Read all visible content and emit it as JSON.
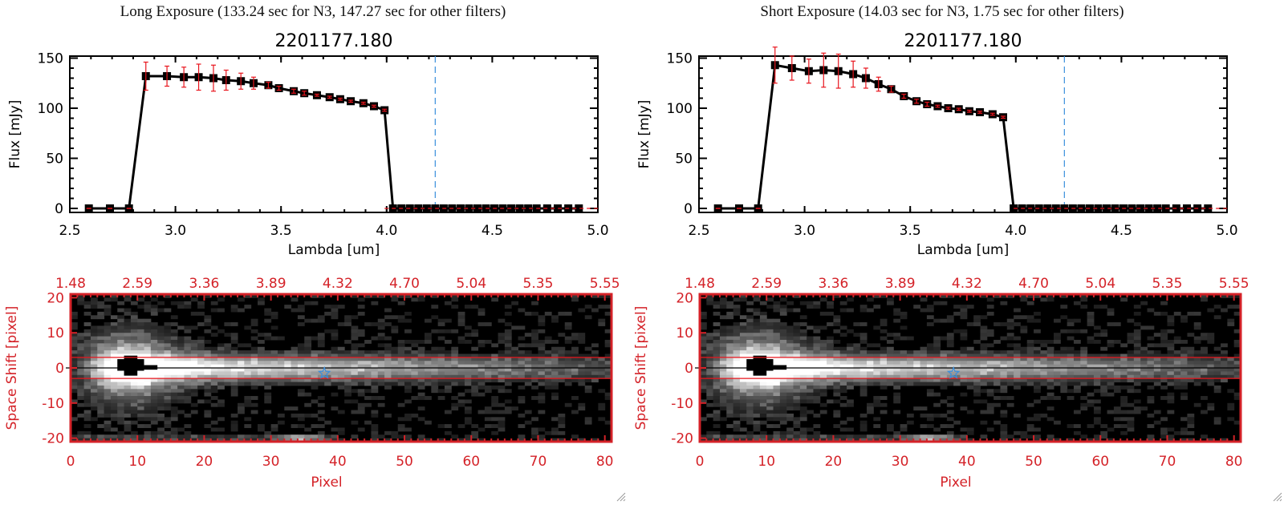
{
  "panels": [
    {
      "exposure_title": "Long Exposure (133.24 sec for N3, 147.27 sec for other filters)",
      "object_id": "2201177.180",
      "spectrum": {
        "type": "line",
        "title": "2201177.180",
        "xlabel": "Lambda [um]",
        "ylabel": "Flux [mJy]",
        "xlim": [
          2.5,
          5.0
        ],
        "ylim": [
          -4,
          152
        ],
        "xticks": [
          "2.5",
          "3.0",
          "3.5",
          "4.0",
          "4.5",
          "5.0"
        ],
        "xtick_values": [
          2.5,
          3.0,
          3.5,
          4.0,
          4.5,
          5.0
        ],
        "yticks": [
          "0",
          "50",
          "100",
          "150"
        ],
        "ytick_values": [
          0,
          50,
          100,
          150
        ],
        "marker_line_x": 4.23,
        "zero_line": 0,
        "x": [
          2.59,
          2.69,
          2.78,
          2.86,
          2.96,
          3.04,
          3.11,
          3.18,
          3.24,
          3.31,
          3.37,
          3.44,
          3.49,
          3.56,
          3.61,
          3.67,
          3.73,
          3.78,
          3.83,
          3.89,
          3.94,
          3.99,
          4.03,
          4.07,
          4.11,
          4.15,
          4.19,
          4.23,
          4.27,
          4.31,
          4.35,
          4.39,
          4.43,
          4.47,
          4.51,
          4.55,
          4.59,
          4.63,
          4.67,
          4.71,
          4.76,
          4.81,
          4.86,
          4.91
        ],
        "flux": [
          0,
          0,
          0,
          132,
          132,
          131,
          131,
          130,
          128,
          127,
          125,
          123,
          120,
          117,
          115,
          113,
          111,
          109,
          107,
          105,
          102,
          98,
          0,
          0,
          0,
          0,
          0,
          0,
          0,
          0,
          0,
          0,
          0,
          0,
          0,
          0,
          0,
          0,
          0,
          0,
          0,
          0,
          0,
          0
        ],
        "error": [
          0,
          0,
          0,
          14,
          10,
          10,
          13,
          13,
          10,
          8,
          6,
          3,
          2,
          2,
          2,
          1,
          1,
          1,
          1,
          1,
          1,
          1,
          0,
          0,
          0,
          0,
          0,
          0,
          0,
          0,
          0,
          0,
          0,
          0,
          0,
          0,
          0,
          0,
          0,
          0,
          0,
          0,
          0,
          0
        ]
      },
      "image": {
        "type": "heatmap",
        "xlabel": "Pixel",
        "ylabel": "Space Shift [pixel]",
        "xlim": [
          0,
          81
        ],
        "ylim": [
          -21,
          21
        ],
        "xticks": [
          "0",
          "10",
          "20",
          "30",
          "40",
          "50",
          "60",
          "70",
          "80"
        ],
        "xtick_values": [
          0,
          10,
          20,
          30,
          40,
          50,
          60,
          70,
          80
        ],
        "yticks": [
          "20",
          "10",
          "0",
          "-10",
          "-20"
        ],
        "ytick_values": [
          20,
          10,
          0,
          -10,
          -20
        ],
        "top_ticks": [
          "1.48",
          "2.59",
          "3.36",
          "3.89",
          "4.32",
          "4.70",
          "5.04",
          "5.35",
          "5.55"
        ],
        "aperture_lines": [
          3,
          -3
        ],
        "center_line": 0,
        "star_marker": [
          38,
          -1.5
        ],
        "saturated_center": [
          9,
          1
        ]
      }
    },
    {
      "exposure_title": "Short Exposure (14.03 sec for N3, 1.75 sec for other filters)",
      "object_id": "2201177.180",
      "spectrum": {
        "type": "line",
        "title": "2201177.180",
        "xlabel": "Lambda [um]",
        "ylabel": "Flux [mJy]",
        "xlim": [
          2.5,
          5.0
        ],
        "ylim": [
          -4,
          152
        ],
        "xticks": [
          "2.5",
          "3.0",
          "3.5",
          "4.0",
          "4.5",
          "5.0"
        ],
        "xtick_values": [
          2.5,
          3.0,
          3.5,
          4.0,
          4.5,
          5.0
        ],
        "yticks": [
          "0",
          "50",
          "100",
          "150"
        ],
        "ytick_values": [
          0,
          50,
          100,
          150
        ],
        "marker_line_x": 4.23,
        "zero_line": 0,
        "x": [
          2.59,
          2.69,
          2.78,
          2.86,
          2.94,
          3.02,
          3.09,
          3.16,
          3.23,
          3.29,
          3.35,
          3.41,
          3.47,
          3.53,
          3.58,
          3.63,
          3.68,
          3.73,
          3.78,
          3.83,
          3.89,
          3.94,
          3.99,
          4.03,
          4.07,
          4.11,
          4.15,
          4.19,
          4.23,
          4.27,
          4.31,
          4.35,
          4.39,
          4.43,
          4.47,
          4.51,
          4.55,
          4.59,
          4.63,
          4.67,
          4.71,
          4.76,
          4.81,
          4.86,
          4.91
        ],
        "flux": [
          0,
          0,
          0,
          143,
          140,
          137,
          138,
          137,
          134,
          130,
          124,
          119,
          112,
          107,
          104,
          102,
          100,
          99,
          97,
          96,
          94,
          91,
          0,
          0,
          0,
          0,
          0,
          0,
          0,
          0,
          0,
          0,
          0,
          0,
          0,
          0,
          0,
          0,
          0,
          0,
          0,
          0,
          0,
          0,
          0
        ],
        "error": [
          0,
          0,
          0,
          18,
          12,
          12,
          17,
          17,
          13,
          10,
          7,
          3,
          2,
          2,
          2,
          1,
          1,
          1,
          1,
          1,
          1,
          1,
          0,
          0,
          0,
          0,
          0,
          0,
          0,
          0,
          0,
          0,
          0,
          0,
          0,
          0,
          0,
          0,
          0,
          0,
          0,
          0,
          0,
          0,
          0
        ]
      },
      "image": {
        "type": "heatmap",
        "xlabel": "Pixel",
        "ylabel": "Space Shift [pixel]",
        "xlim": [
          0,
          81
        ],
        "ylim": [
          -21,
          21
        ],
        "xticks": [
          "0",
          "10",
          "20",
          "30",
          "40",
          "50",
          "60",
          "70",
          "80"
        ],
        "xtick_values": [
          0,
          10,
          20,
          30,
          40,
          50,
          60,
          70,
          80
        ],
        "yticks": [
          "20",
          "10",
          "0",
          "-10",
          "-20"
        ],
        "ytick_values": [
          20,
          10,
          0,
          -10,
          -20
        ],
        "top_ticks": [
          "1.48",
          "2.59",
          "3.36",
          "3.89",
          "4.32",
          "4.70",
          "5.04",
          "5.35",
          "5.55"
        ],
        "aperture_lines": [
          3,
          -3
        ],
        "center_line": 0,
        "star_marker": [
          38,
          -1.5
        ],
        "saturated_center": [
          9,
          1
        ]
      }
    }
  ],
  "chart_data": [
    {
      "type": "line",
      "title": "2201177.180",
      "subtitle": "Long Exposure (133.24 sec for N3, 147.27 sec for other filters)",
      "xlabel": "Lambda [um]",
      "ylabel": "Flux [mJy]",
      "xlim": [
        2.5,
        5.0
      ],
      "ylim": [
        0,
        150
      ],
      "series": [
        {
          "name": "flux",
          "x": [
            2.59,
            2.69,
            2.78,
            2.86,
            2.96,
            3.04,
            3.11,
            3.18,
            3.24,
            3.31,
            3.37,
            3.44,
            3.49,
            3.56,
            3.61,
            3.67,
            3.73,
            3.78,
            3.83,
            3.89,
            3.94,
            3.99
          ],
          "values": [
            0,
            0,
            0,
            132,
            132,
            131,
            131,
            130,
            128,
            127,
            125,
            123,
            120,
            117,
            115,
            113,
            111,
            109,
            107,
            105,
            102,
            98
          ]
        }
      ]
    },
    {
      "type": "heatmap",
      "xlabel": "Pixel",
      "ylabel": "Space Shift [pixel]",
      "xlim": [
        0,
        81
      ],
      "ylim": [
        -21,
        21
      ],
      "top_axis_ticks": [
        "1.48",
        "2.59",
        "3.36",
        "3.89",
        "4.32",
        "4.70",
        "5.04",
        "5.35",
        "5.55"
      ]
    },
    {
      "type": "line",
      "title": "2201177.180",
      "subtitle": "Short Exposure (14.03 sec for N3, 1.75 sec for other filters)",
      "xlabel": "Lambda [um]",
      "ylabel": "Flux [mJy]",
      "xlim": [
        2.5,
        5.0
      ],
      "ylim": [
        0,
        150
      ],
      "series": [
        {
          "name": "flux",
          "x": [
            2.59,
            2.69,
            2.78,
            2.86,
            2.94,
            3.02,
            3.09,
            3.16,
            3.23,
            3.29,
            3.35,
            3.41,
            3.47,
            3.53,
            3.58,
            3.63,
            3.68,
            3.73,
            3.78,
            3.83,
            3.89,
            3.94
          ],
          "values": [
            0,
            0,
            0,
            143,
            140,
            137,
            138,
            137,
            134,
            130,
            124,
            119,
            112,
            107,
            104,
            102,
            100,
            99,
            97,
            96,
            94,
            91
          ]
        }
      ]
    },
    {
      "type": "heatmap",
      "xlabel": "Pixel",
      "ylabel": "Space Shift [pixel]",
      "xlim": [
        0,
        81
      ],
      "ylim": [
        -21,
        21
      ],
      "top_axis_ticks": [
        "1.48",
        "2.59",
        "3.36",
        "3.89",
        "4.32",
        "4.70",
        "5.04",
        "5.35",
        "5.55"
      ]
    }
  ],
  "colors": {
    "axis": "#000000",
    "error_bar": "#e8141c",
    "image_axis": "#d42228",
    "marker_line": "#3a8fdc",
    "star": "#3a8fdc",
    "aperture": "#e8141c"
  }
}
